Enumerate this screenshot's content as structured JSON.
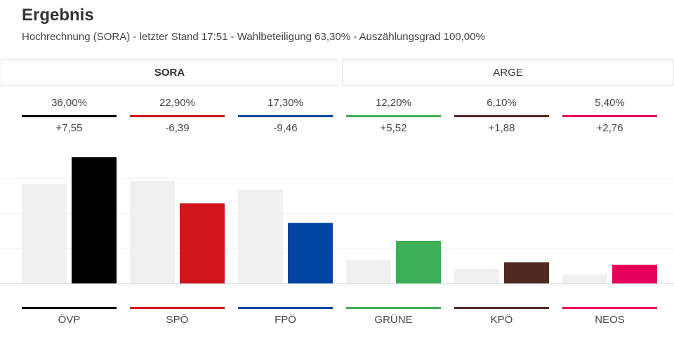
{
  "header": {
    "title": "Ergebnis",
    "subtitle": "Hochrechnung (SORA) - letzter Stand 17:51 - Wahlbeteiligung 63,30% - Auszählungsgrad 100,00%"
  },
  "tabs": [
    {
      "label": "SORA",
      "active": true
    },
    {
      "label": "ARGE",
      "active": false
    }
  ],
  "chart_data": {
    "type": "bar",
    "categories": [
      "ÖVP",
      "SPÖ",
      "FPÖ",
      "GRÜNE",
      "KPÖ",
      "NEOS"
    ],
    "value_labels": [
      "36,00%",
      "22,90%",
      "17,30%",
      "12,20%",
      "6,10%",
      "5,40%"
    ],
    "diff_labels": [
      "+7,55",
      "-6,39",
      "-9,46",
      "+5,52",
      "+1,88",
      "+2,76"
    ],
    "series": [
      {
        "values": [
          28.45,
          29.29,
          26.76,
          6.68,
          4.22,
          2.64
        ],
        "color": "#f0f0f0"
      },
      {
        "values": [
          36.0,
          22.9,
          17.3,
          12.2,
          6.1,
          5.4
        ]
      }
    ],
    "colors": [
      "#000000",
      "#d0151f",
      "#0046a0",
      "#3daf57",
      "#4e2a23",
      "#e5005a"
    ],
    "ylim": [
      0,
      40
    ],
    "grid": true
  }
}
